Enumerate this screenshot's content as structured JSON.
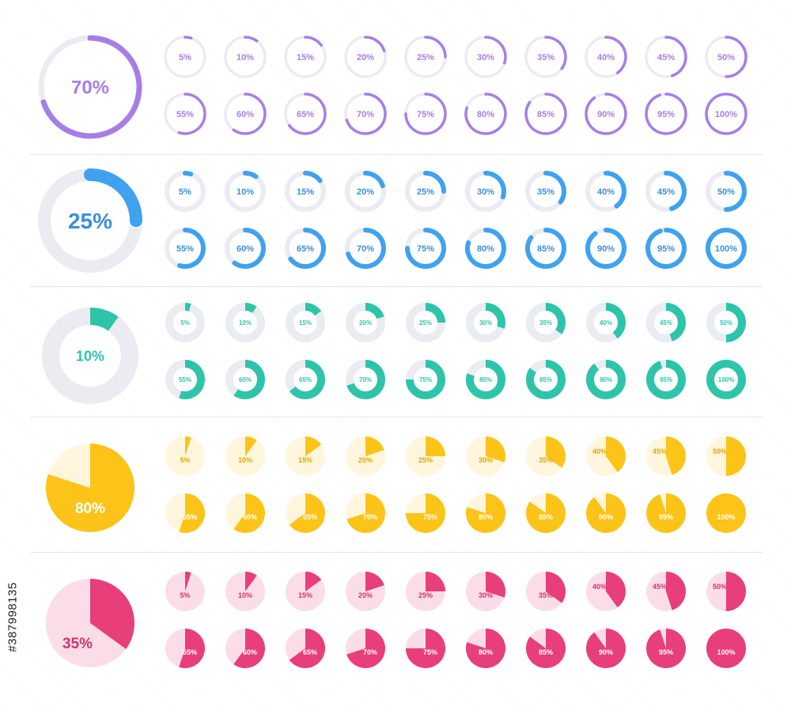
{
  "sections": [
    {
      "id": "purple-rings",
      "style": "thin-ring",
      "colors": {
        "fill": "#a77ee6",
        "track": "#ebebf2",
        "text": "#a77ee6",
        "bg": "#ffffff"
      },
      "large": {
        "value": 70,
        "label": "70%"
      },
      "small": [
        {
          "value": 5,
          "label": "5%"
        },
        {
          "value": 10,
          "label": "10%"
        },
        {
          "value": 15,
          "label": "15%"
        },
        {
          "value": 20,
          "label": "20%"
        },
        {
          "value": 25,
          "label": "25%"
        },
        {
          "value": 30,
          "label": "30%"
        },
        {
          "value": 35,
          "label": "35%"
        },
        {
          "value": 40,
          "label": "40%"
        },
        {
          "value": 45,
          "label": "45%"
        },
        {
          "value": 50,
          "label": "50%"
        },
        {
          "value": 55,
          "label": "55%"
        },
        {
          "value": 60,
          "label": "60%"
        },
        {
          "value": 65,
          "label": "65%"
        },
        {
          "value": 70,
          "label": "70%"
        },
        {
          "value": 75,
          "label": "75%"
        },
        {
          "value": 80,
          "label": "80%"
        },
        {
          "value": 85,
          "label": "85%"
        },
        {
          "value": 90,
          "label": "90%"
        },
        {
          "value": 95,
          "label": "95%"
        },
        {
          "value": 100,
          "label": "100%"
        }
      ]
    },
    {
      "id": "blue-rings",
      "style": "medium-ring",
      "colors": {
        "fill": "#3fa2ef",
        "track": "#ebebf2",
        "text": "#3a8fdb",
        "bg": "#ffffff"
      },
      "large": {
        "value": 25,
        "label": "25%"
      },
      "small": [
        {
          "value": 5,
          "label": "5%"
        },
        {
          "value": 10,
          "label": "10%"
        },
        {
          "value": 15,
          "label": "15%"
        },
        {
          "value": 20,
          "label": "20%"
        },
        {
          "value": 25,
          "label": "25%"
        },
        {
          "value": 30,
          "label": "30%"
        },
        {
          "value": 35,
          "label": "35%"
        },
        {
          "value": 40,
          "label": "40%"
        },
        {
          "value": 45,
          "label": "45%"
        },
        {
          "value": 50,
          "label": "50%"
        },
        {
          "value": 55,
          "label": "55%"
        },
        {
          "value": 60,
          "label": "60%"
        },
        {
          "value": 65,
          "label": "65%"
        },
        {
          "value": 70,
          "label": "70%"
        },
        {
          "value": 75,
          "label": "75%"
        },
        {
          "value": 80,
          "label": "80%"
        },
        {
          "value": 85,
          "label": "85%"
        },
        {
          "value": 90,
          "label": "90%"
        },
        {
          "value": 95,
          "label": "95%"
        },
        {
          "value": 100,
          "label": "100%"
        }
      ]
    },
    {
      "id": "teal-donuts",
      "style": "thick-donut",
      "colors": {
        "fill": "#2ec4a9",
        "track": "#ebebf2",
        "text": "#2ec4a9",
        "bg": "#ffffff"
      },
      "large": {
        "value": 10,
        "label": "10%"
      },
      "small": [
        {
          "value": 5,
          "label": "5%"
        },
        {
          "value": 10,
          "label": "10%"
        },
        {
          "value": 15,
          "label": "15%"
        },
        {
          "value": 20,
          "label": "20%"
        },
        {
          "value": 25,
          "label": "25%"
        },
        {
          "value": 30,
          "label": "30%"
        },
        {
          "value": 35,
          "label": "35%"
        },
        {
          "value": 40,
          "label": "40%"
        },
        {
          "value": 45,
          "label": "45%"
        },
        {
          "value": 50,
          "label": "50%"
        },
        {
          "value": 55,
          "label": "55%"
        },
        {
          "value": 60,
          "label": "60%"
        },
        {
          "value": 65,
          "label": "65%"
        },
        {
          "value": 70,
          "label": "70%"
        },
        {
          "value": 75,
          "label": "75%"
        },
        {
          "value": 80,
          "label": "80%"
        },
        {
          "value": 85,
          "label": "85%"
        },
        {
          "value": 90,
          "label": "90%"
        },
        {
          "value": 95,
          "label": "95%"
        },
        {
          "value": 100,
          "label": "100%"
        }
      ]
    },
    {
      "id": "yellow-pies",
      "style": "pie",
      "colors": {
        "fill": "#fcc419",
        "track": "#fff6dd",
        "text": "#e0a800",
        "bg": "#ffffff"
      },
      "large": {
        "value": 80,
        "label": "80%"
      },
      "small": [
        {
          "value": 5,
          "label": "5%"
        },
        {
          "value": 10,
          "label": "10%"
        },
        {
          "value": 15,
          "label": "15%"
        },
        {
          "value": 20,
          "label": "20%"
        },
        {
          "value": 25,
          "label": "25%"
        },
        {
          "value": 30,
          "label": "30%"
        },
        {
          "value": 35,
          "label": "35%"
        },
        {
          "value": 40,
          "label": "40%"
        },
        {
          "value": 45,
          "label": "45%"
        },
        {
          "value": 50,
          "label": "50%"
        },
        {
          "value": 55,
          "label": "55%"
        },
        {
          "value": 60,
          "label": "60%"
        },
        {
          "value": 65,
          "label": "65%"
        },
        {
          "value": 70,
          "label": "70%"
        },
        {
          "value": 75,
          "label": "75%"
        },
        {
          "value": 80,
          "label": "80%"
        },
        {
          "value": 85,
          "label": "85%"
        },
        {
          "value": 90,
          "label": "90%"
        },
        {
          "value": 95,
          "label": "95%"
        },
        {
          "value": 100,
          "label": "100%"
        }
      ]
    },
    {
      "id": "pink-pies",
      "style": "pie",
      "colors": {
        "fill": "#e83e7a",
        "track": "#fbdde8",
        "text": "#d0336b",
        "bg": "#ffffff"
      },
      "large": {
        "value": 35,
        "label": "35%"
      },
      "small": [
        {
          "value": 5,
          "label": "5%"
        },
        {
          "value": 10,
          "label": "10%"
        },
        {
          "value": 15,
          "label": "15%"
        },
        {
          "value": 20,
          "label": "20%"
        },
        {
          "value": 25,
          "label": "25%"
        },
        {
          "value": 30,
          "label": "30%"
        },
        {
          "value": 35,
          "label": "35%"
        },
        {
          "value": 40,
          "label": "40%"
        },
        {
          "value": 45,
          "label": "45%"
        },
        {
          "value": 50,
          "label": "50%"
        },
        {
          "value": 55,
          "label": "55%"
        },
        {
          "value": 60,
          "label": "60%"
        },
        {
          "value": 65,
          "label": "65%"
        },
        {
          "value": 70,
          "label": "70%"
        },
        {
          "value": 75,
          "label": "75%"
        },
        {
          "value": 80,
          "label": "80%"
        },
        {
          "value": 85,
          "label": "85%"
        },
        {
          "value": 90,
          "label": "90%"
        },
        {
          "value": 95,
          "label": "95%"
        },
        {
          "value": 100,
          "label": "100%"
        }
      ]
    }
  ],
  "stock_id": "#387998135",
  "watermark_text": "Adobe Stock"
}
